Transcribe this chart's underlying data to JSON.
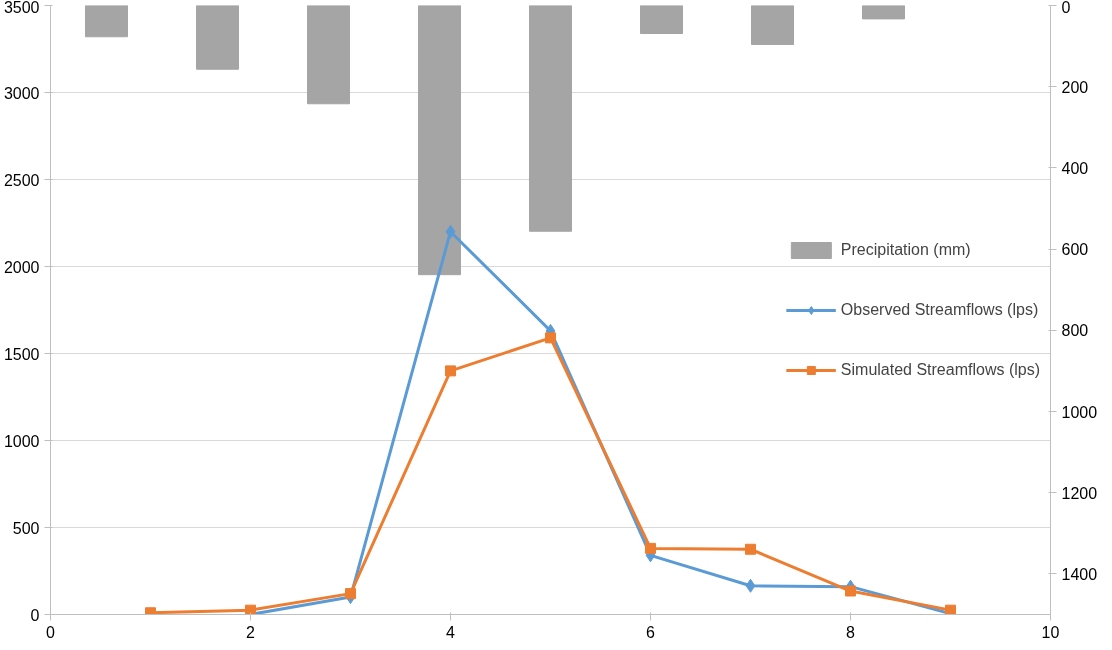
{
  "chart_data": {
    "type": "line",
    "xlim": [
      0,
      10
    ],
    "xticks": [
      0,
      2,
      4,
      6,
      8,
      10
    ],
    "ylim": [
      0,
      3500
    ],
    "yticks": [
      0,
      500,
      1000,
      1500,
      2000,
      2500,
      3000,
      3500
    ],
    "y2lim": [
      1500,
      0
    ],
    "y2ticks": [
      0,
      200,
      400,
      600,
      800,
      1000,
      1200,
      1400
    ],
    "grid": "y",
    "legend": "right",
    "line_style": "solid",
    "series": [
      {
        "name": "Precipitation (mm)",
        "type": "bar",
        "axis": "y2",
        "color": "#a5a5a5",
        "x": [
          0.56,
          1.67,
          2.78,
          3.89,
          5.0,
          6.11,
          7.22,
          8.33
        ],
        "values": [
          77,
          157,
          242,
          663,
          556,
          69,
          96,
          33
        ]
      },
      {
        "name": "Observed Streamflows (lps)",
        "marker": "diamond",
        "color": "#5b9bd5",
        "x": [
          2,
          3,
          4,
          5,
          6,
          7,
          8,
          9
        ],
        "values": [
          0,
          100,
          2200,
          1630,
          340,
          165,
          160,
          5
        ]
      },
      {
        "name": "Simulated Streamflows (lps)",
        "marker": "square",
        "color": "#ed7d31",
        "x": [
          1,
          2,
          3,
          4,
          5,
          6,
          7,
          8,
          9
        ],
        "values": [
          10,
          25,
          120,
          1400,
          1590,
          380,
          375,
          135,
          25
        ]
      }
    ]
  }
}
